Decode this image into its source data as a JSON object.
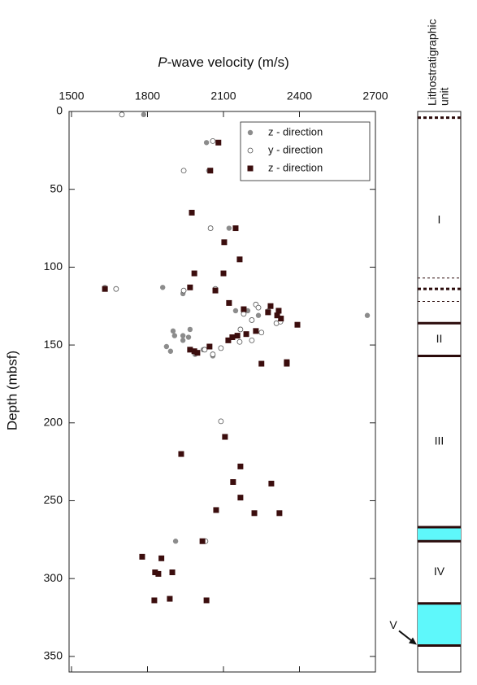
{
  "chart_data": {
    "type": "scatter",
    "title_italic": "P",
    "title": "-wave velocity (m/s)",
    "y_label": "Depth (mbsf)",
    "xlim": [
      1500,
      2700
    ],
    "xticks": [
      1500,
      1800,
      2100,
      2400,
      2700
    ],
    "ylim": [
      0,
      360
    ],
    "yticks": [
      0,
      50,
      100,
      150,
      200,
      250,
      300,
      350
    ],
    "legend": "upper-right",
    "series": [
      {
        "name": "z - direction",
        "color": "#8c8c8c",
        "marker": "circle",
        "x": [
          1785,
          2033,
          2042,
          2122,
          1632,
          1860,
          1940,
          2148,
          2196,
          2277,
          2238,
          2668,
          1968,
          1940,
          1962,
          1907,
          1940,
          1875,
          1891,
          1988,
          2020,
          2058,
          1911,
          1901
        ],
        "values": [
          2,
          20,
          38,
          75,
          113,
          113,
          117,
          128,
          128,
          128,
          131,
          131,
          140,
          144,
          145,
          144,
          147,
          151,
          154,
          156,
          153,
          157,
          276,
          141
        ]
      },
      {
        "name": "y - direction",
        "color": "#555555",
        "marker": "open-circle",
        "x": [
          1699,
          2058,
          1943,
          2049,
          1676,
          1943,
          2068,
          2228,
          2238,
          2180,
          2212,
          2167,
          2250,
          2212,
          2164,
          2309,
          2325,
          2026,
          2058,
          2090,
          2090,
          2029
        ],
        "values": [
          2,
          19,
          38,
          75,
          114,
          115,
          114,
          124,
          126,
          130,
          134,
          140,
          142,
          147,
          148,
          136,
          135,
          153,
          156,
          152,
          199,
          276
        ]
      },
      {
        "name": "z - direction",
        "color": "#3b0d0d",
        "marker": "square",
        "x": [
          2080,
          2048,
          1975,
          2148,
          2103,
          2164,
          2100,
          1985,
          1632,
          1968,
          2068,
          2122,
          2286,
          2276,
          2318,
          2312,
          2327,
          2392,
          2228,
          2190,
          2155,
          2135,
          2119,
          2180,
          2045,
          1968,
          1997,
          1985,
          2250,
          2350,
          2350,
          2106,
          1933,
          2167,
          2138,
          2289,
          2167,
          2071,
          2222,
          2321,
          2017,
          1779,
          1855,
          1830,
          1843,
          1898,
          1827,
          1888,
          2033
        ],
        "values": [
          20,
          38,
          65,
          75,
          84,
          95,
          104,
          104,
          114,
          113,
          115,
          123,
          125,
          129,
          128,
          131,
          133,
          137,
          141,
          143,
          144,
          145,
          147,
          127,
          151,
          153,
          155,
          154,
          162,
          161,
          162,
          209,
          220,
          228,
          238,
          239,
          248,
          256,
          258,
          258,
          276,
          286,
          287,
          296,
          297,
          296,
          314,
          313,
          314
        ]
      }
    ]
  },
  "column": {
    "title": [
      "Lithostratigraphic",
      "unit"
    ],
    "units": [
      {
        "label": "I",
        "top": 4,
        "bottom": 136
      },
      {
        "label": "II",
        "top": 136,
        "bottom": 157
      },
      {
        "label": "III",
        "top": 157,
        "bottom": 267
      },
      {
        "label": "IV",
        "top": 276,
        "bottom": 316
      },
      {
        "label": "V",
        "top": 343,
        "bottom": 360
      }
    ],
    "boundaries": [
      {
        "depth": 4,
        "style": "dashed"
      },
      {
        "depth": 107,
        "style": "dotted"
      },
      {
        "depth": 114,
        "style": "dashed"
      },
      {
        "depth": 122,
        "style": "dotted"
      },
      {
        "depth": 136,
        "style": "solid"
      },
      {
        "depth": 157,
        "style": "solid"
      },
      {
        "depth": 267,
        "style": "solid"
      },
      {
        "depth": 276,
        "style": "solid"
      },
      {
        "depth": 316,
        "style": "solid"
      },
      {
        "depth": 343,
        "style": "solid"
      }
    ],
    "highlight_color": "#5ef8fb",
    "highlights": [
      [
        267,
        276
      ],
      [
        316,
        343
      ]
    ]
  }
}
